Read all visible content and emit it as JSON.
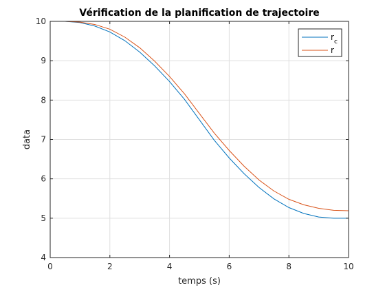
{
  "chart_data": {
    "type": "line",
    "title": "Vérification de la planification de trajectoire",
    "xlabel": "temps (s)",
    "ylabel": "data",
    "xlim": [
      0,
      10
    ],
    "ylim": [
      4,
      10
    ],
    "xticks": [
      "0",
      "2",
      "4",
      "6",
      "8",
      "10"
    ],
    "yticks": [
      "4",
      "5",
      "6",
      "7",
      "8",
      "9",
      "10"
    ],
    "grid": true,
    "legend_position": "top-right",
    "series": [
      {
        "name": "r",
        "subscript": "c",
        "color": "#0072BD",
        "x": [
          0,
          0.5,
          1,
          1.5,
          2,
          2.5,
          3,
          3.5,
          4,
          4.5,
          5,
          5.5,
          6,
          6.5,
          7,
          7.5,
          8,
          8.5,
          9,
          9.5,
          10
        ],
        "y": [
          10,
          10,
          9.97,
          9.88,
          9.73,
          9.51,
          9.22,
          8.87,
          8.47,
          8.02,
          7.5,
          6.98,
          6.53,
          6.13,
          5.78,
          5.49,
          5.27,
          5.12,
          5.03,
          5.0,
          5.0
        ]
      },
      {
        "name": "r",
        "subscript": "",
        "color": "#D95319",
        "x": [
          0,
          0.5,
          1,
          1.5,
          2,
          2.5,
          3,
          3.5,
          4,
          4.5,
          5,
          5.5,
          6,
          6.5,
          7,
          7.5,
          8,
          8.5,
          9,
          9.5,
          10
        ],
        "y": [
          10,
          10,
          9.98,
          9.92,
          9.8,
          9.6,
          9.33,
          8.99,
          8.6,
          8.16,
          7.66,
          7.16,
          6.72,
          6.32,
          5.97,
          5.69,
          5.48,
          5.34,
          5.25,
          5.2,
          5.19
        ]
      }
    ]
  }
}
